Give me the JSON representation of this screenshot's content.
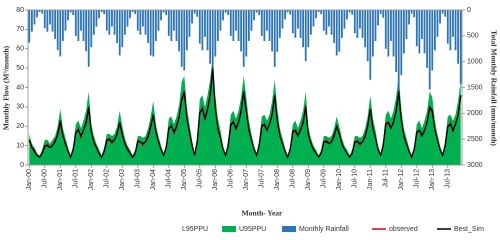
{
  "chart_data": {
    "type": "line",
    "x_label": "Month- Year",
    "y_label": "Monthly Flow (M³/month)",
    "y2_label": "Total Monthly Rainfall (mm/month)",
    "ylim": [
      0,
      80
    ],
    "yticks": [
      0,
      10,
      20,
      30,
      40,
      50,
      60,
      70,
      80
    ],
    "y2lim": [
      0,
      3000
    ],
    "y2ticks": [
      0,
      500,
      1000,
      1500,
      2000,
      2500,
      3000
    ],
    "y2_inverted": true,
    "legend": "bottom",
    "categories": [
      "Jan-00",
      null,
      null,
      null,
      null,
      null,
      "Jul-00",
      null,
      null,
      null,
      null,
      null,
      "Jan-01",
      null,
      null,
      null,
      null,
      null,
      "Jul-01",
      null,
      null,
      null,
      null,
      null,
      "Jan-02",
      null,
      null,
      null,
      null,
      null,
      "Jul-02",
      null,
      null,
      null,
      null,
      null,
      "Jan-03",
      null,
      null,
      null,
      null,
      null,
      "Jul-03",
      null,
      null,
      null,
      null,
      null,
      "Jan-04",
      null,
      null,
      null,
      null,
      null,
      "Jul-04",
      null,
      null,
      null,
      null,
      null,
      "Jan-05",
      null,
      null,
      null,
      null,
      null,
      "Jul-05",
      null,
      null,
      null,
      null,
      null,
      "Jan-06",
      null,
      null,
      null,
      null,
      null,
      "Jul-06",
      null,
      null,
      null,
      null,
      null,
      "Jan-07",
      null,
      null,
      null,
      null,
      null,
      "Jul-07",
      null,
      null,
      null,
      null,
      null,
      "Jan-08",
      null,
      null,
      null,
      null,
      null,
      "Jul-08",
      null,
      null,
      null,
      null,
      null,
      "Jan-09",
      null,
      null,
      null,
      null,
      null,
      "Jul-09",
      null,
      null,
      null,
      null,
      null,
      "Jan-10",
      null,
      null,
      null,
      null,
      null,
      "Jul-10",
      null,
      null,
      null,
      null,
      null,
      "Jan-11",
      null,
      null,
      null,
      null,
      null,
      "Jul-11",
      null,
      null,
      null,
      null,
      null,
      "Jan-12",
      null,
      null,
      null,
      null,
      null,
      "Jul-12",
      null,
      null,
      null,
      null,
      null,
      "Jan-13",
      null,
      null,
      null,
      null,
      null,
      "Jul-13",
      null,
      null,
      null,
      null,
      null
    ],
    "series": [
      {
        "name": "L95PPU",
        "type": "area",
        "color": "#ffffff",
        "values": [
          10,
          7,
          6,
          4,
          3,
          5,
          8,
          8,
          7,
          8,
          10,
          13,
          18,
          12,
          9,
          6,
          3,
          6,
          14,
          14,
          12,
          14,
          18,
          24,
          14,
          10,
          7,
          5,
          3,
          6,
          10,
          10,
          10,
          10,
          13,
          18,
          13,
          9,
          6,
          5,
          3,
          5,
          10,
          10,
          9,
          10,
          12,
          16,
          21,
          14,
          10,
          6,
          4,
          7,
          15,
          16,
          14,
          16,
          20,
          27,
          30,
          19,
          14,
          8,
          4,
          10,
          22,
          23,
          19,
          23,
          29,
          40,
          23,
          15,
          11,
          6,
          4,
          8,
          17,
          18,
          15,
          18,
          22,
          30,
          22,
          14,
          10,
          6,
          4,
          8,
          16,
          17,
          14,
          17,
          21,
          29,
          18,
          12,
          9,
          6,
          3,
          6,
          14,
          14,
          12,
          14,
          18,
          24,
          13,
          9,
          6,
          5,
          3,
          5,
          10,
          10,
          9,
          10,
          12,
          16,
          13,
          9,
          6,
          5,
          3,
          5,
          10,
          10,
          9,
          10,
          12,
          16,
          23,
          15,
          11,
          6,
          4,
          8,
          17,
          18,
          15,
          18,
          22,
          30,
          18,
          12,
          9,
          6,
          3,
          6,
          14,
          14,
          12,
          14,
          18,
          24,
          22,
          14,
          10,
          6,
          4,
          8,
          16,
          17,
          14,
          17,
          21,
          29
        ]
      },
      {
        "name": "U95PPU",
        "type": "area",
        "color": "#00b050",
        "values": [
          16,
          11,
          9,
          6,
          5,
          8,
          13,
          13,
          11,
          13,
          15,
          20,
          29,
          19,
          14,
          9,
          5,
          10,
          21,
          23,
          19,
          23,
          28,
          38,
          21,
          15,
          11,
          8,
          5,
          9,
          16,
          16,
          15,
          16,
          20,
          28,
          20,
          14,
          10,
          8,
          5,
          8,
          15,
          15,
          14,
          15,
          19,
          25,
          33,
          21,
          15,
          10,
          6,
          11,
          24,
          25,
          21,
          25,
          31,
          43,
          46,
          30,
          21,
          13,
          6,
          15,
          34,
          36,
          30,
          36,
          44,
          56,
          36,
          24,
          18,
          10,
          6,
          13,
          26,
          28,
          24,
          28,
          35,
          46,
          35,
          23,
          16,
          10,
          6,
          13,
          25,
          26,
          23,
          26,
          33,
          44,
          29,
          19,
          14,
          9,
          5,
          10,
          21,
          23,
          19,
          23,
          28,
          38,
          20,
          14,
          10,
          8,
          5,
          8,
          15,
          15,
          14,
          15,
          19,
          25,
          20,
          14,
          10,
          8,
          5,
          8,
          15,
          15,
          14,
          15,
          19,
          25,
          36,
          24,
          18,
          10,
          6,
          13,
          26,
          28,
          24,
          28,
          35,
          46,
          29,
          19,
          14,
          9,
          5,
          10,
          21,
          23,
          19,
          23,
          28,
          38,
          35,
          23,
          16,
          10,
          6,
          13,
          25,
          26,
          23,
          26,
          33,
          44
        ]
      },
      {
        "name": "Monthly Rainfall",
        "type": "bar",
        "axis": "y2",
        "color": "#2e75b6",
        "values": [
          630,
          420,
          280,
          140,
          40,
          70,
          350,
          420,
          280,
          420,
          560,
          770,
          900,
          600,
          400,
          200,
          50,
          100,
          500,
          600,
          400,
          600,
          800,
          1100,
          720,
          480,
          320,
          160,
          40,
          80,
          400,
          480,
          320,
          480,
          640,
          880,
          720,
          480,
          320,
          160,
          40,
          80,
          400,
          480,
          320,
          480,
          640,
          880,
          900,
          600,
          400,
          200,
          50,
          100,
          500,
          600,
          400,
          600,
          800,
          1100,
          1170,
          780,
          520,
          260,
          70,
          130,
          650,
          780,
          520,
          780,
          1040,
          1430,
          900,
          600,
          400,
          200,
          50,
          100,
          500,
          600,
          400,
          600,
          800,
          1100,
          900,
          600,
          400,
          200,
          50,
          100,
          500,
          600,
          400,
          600,
          800,
          1100,
          810,
          540,
          360,
          180,
          50,
          90,
          450,
          540,
          360,
          540,
          720,
          990,
          720,
          480,
          320,
          160,
          40,
          80,
          400,
          480,
          320,
          480,
          640,
          880,
          810,
          540,
          360,
          180,
          50,
          90,
          450,
          540,
          360,
          540,
          720,
          990,
          1350,
          900,
          600,
          300,
          80,
          150,
          750,
          900,
          600,
          900,
          1200,
          1650,
          1260,
          840,
          560,
          280,
          70,
          140,
          700,
          840,
          560,
          840,
          1120,
          1540,
          1170,
          780,
          520,
          260,
          70,
          130,
          650,
          780,
          520,
          780,
          1040,
          1430
        ]
      },
      {
        "name": "observed",
        "type": "line",
        "color": "#e00000",
        "values": [
          12,
          9,
          8,
          5,
          4,
          6,
          9,
          11,
          9,
          10,
          13,
          15,
          21,
          16,
          11,
          7,
          4,
          8,
          16,
          19,
          14,
          18,
          21,
          28,
          18,
          11,
          9,
          6,
          4,
          7,
          12,
          14,
          11,
          13,
          17,
          21,
          15,
          11,
          9,
          6,
          4,
          6,
          13,
          12,
          10,
          12,
          14,
          19,
          25,
          18,
          12,
          8,
          5,
          9,
          18,
          21,
          16,
          19,
          24,
          33,
          36,
          25,
          16,
          10,
          5,
          12,
          26,
          30,
          23,
          28,
          35,
          48,
          30,
          18,
          14,
          8,
          5,
          10,
          20,
          23,
          18,
          22,
          27,
          37,
          27,
          19,
          13,
          8,
          5,
          10,
          21,
          20,
          18,
          21,
          27,
          35,
          22,
          15,
          11,
          7,
          4,
          8,
          18,
          17,
          15,
          19,
          21,
          31,
          15,
          12,
          8,
          6,
          4,
          6,
          11,
          13,
          11,
          12,
          16,
          19,
          17,
          11,
          8,
          6,
          4,
          6,
          12,
          13,
          10,
          12,
          14,
          21,
          28,
          20,
          14,
          8,
          5,
          10,
          22,
          21,
          19,
          23,
          27,
          37,
          24,
          14,
          11,
          7,
          4,
          8,
          16,
          18,
          16,
          17,
          23,
          29,
          27,
          18,
          13,
          8,
          5,
          10,
          19,
          22,
          17,
          21,
          25,
          35
        ]
      },
      {
        "name": "Best_Sim",
        "type": "line",
        "color": "#000000",
        "values": [
          13,
          9,
          7,
          5,
          4,
          6,
          10,
          10,
          9,
          10,
          12,
          16,
          23,
          15,
          11,
          7,
          4,
          8,
          17,
          18,
          15,
          18,
          22,
          30,
          17,
          12,
          9,
          6,
          4,
          7,
          13,
          13,
          12,
          13,
          16,
          22,
          16,
          11,
          8,
          6,
          4,
          6,
          12,
          12,
          11,
          12,
          15,
          20,
          26,
          17,
          12,
          8,
          5,
          9,
          19,
          20,
          17,
          20,
          25,
          34,
          38,
          24,
          17,
          10,
          5,
          12,
          27,
          29,
          24,
          29,
          36,
          50,
          29,
          19,
          14,
          8,
          5,
          10,
          21,
          22,
          19,
          22,
          28,
          38,
          28,
          18,
          13,
          8,
          5,
          10,
          20,
          21,
          18,
          21,
          26,
          36,
          23,
          15,
          11,
          7,
          4,
          8,
          17,
          18,
          15,
          18,
          22,
          30,
          16,
          11,
          8,
          6,
          4,
          6,
          12,
          12,
          11,
          12,
          15,
          20,
          16,
          11,
          8,
          6,
          4,
          6,
          12,
          12,
          11,
          12,
          15,
          20,
          29,
          19,
          14,
          8,
          5,
          10,
          21,
          22,
          19,
          22,
          28,
          38,
          23,
          15,
          11,
          7,
          4,
          8,
          17,
          18,
          15,
          18,
          22,
          30,
          28,
          18,
          13,
          8,
          5,
          10,
          20,
          21,
          18,
          21,
          26,
          36
        ]
      }
    ]
  }
}
